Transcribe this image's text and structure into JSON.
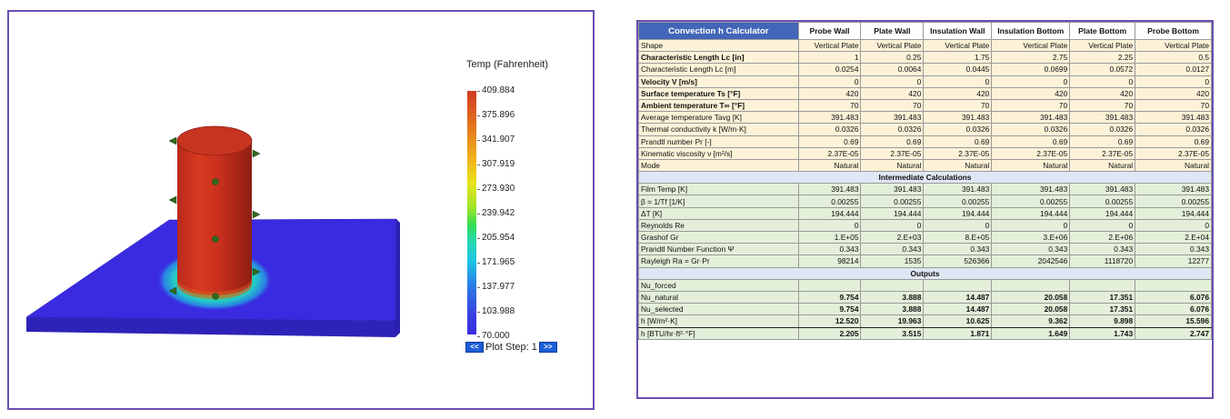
{
  "legend": {
    "title": "Temp (Fahrenheit)",
    "ticks": [
      "409.884",
      "375.896",
      "341.907",
      "307.919",
      "273.930",
      "239.942",
      "205.954",
      "171.965",
      "137.977",
      "103.988",
      "70.000"
    ],
    "plot_step_label": "Plot Step: 1",
    "prev_glyph": "<<",
    "next_glyph": ">>",
    "colors": {
      "hot": "#d23a21",
      "mid": "#35dd54",
      "cold": "#3b2ce0"
    }
  },
  "sheet": {
    "title": "Convection h Calculator",
    "columns": [
      "Probe Wall",
      "Plate Wall",
      "Insulation Wall",
      "Insulation Bottom",
      "Plate Bottom",
      "Probe Bottom"
    ],
    "rows": [
      {
        "kind": "input",
        "label": "Shape",
        "values": [
          "Vertical Plate",
          "Vertical Plate",
          "Vertical Plate",
          "Vertical Plate",
          "Vertical Plate",
          "Vertical Plate"
        ]
      },
      {
        "kind": "input",
        "bold": true,
        "label": "Characteristic Length Lc [in]",
        "values": [
          "1",
          "0.25",
          "1.75",
          "2.75",
          "2.25",
          "0.5"
        ]
      },
      {
        "kind": "input",
        "label": "Characteristic Length Lc [m]",
        "values": [
          "0.0254",
          "0.0064",
          "0.0445",
          "0.0699",
          "0.0572",
          "0.0127"
        ]
      },
      {
        "kind": "input",
        "bold": true,
        "label": "Velocity V [m/s]",
        "values": [
          "0",
          "0",
          "0",
          "0",
          "0",
          "0"
        ]
      },
      {
        "kind": "input",
        "bold": true,
        "label": "Surface temperature Ts [°F]",
        "values": [
          "420",
          "420",
          "420",
          "420",
          "420",
          "420"
        ]
      },
      {
        "kind": "input",
        "bold": true,
        "label": "Ambient temperature T∞ [°F]",
        "values": [
          "70",
          "70",
          "70",
          "70",
          "70",
          "70"
        ]
      },
      {
        "kind": "input",
        "label": "Average temperature Tavg [K]",
        "values": [
          "391.483",
          "391.483",
          "391.483",
          "391.483",
          "391.483",
          "391.483"
        ]
      },
      {
        "kind": "input",
        "label": "Thermal conductivity k [W/m·K]",
        "values": [
          "0.0326",
          "0.0326",
          "0.0326",
          "0.0326",
          "0.0326",
          "0.0326"
        ]
      },
      {
        "kind": "input",
        "label": "Prandtl number Pr [-]",
        "values": [
          "0.69",
          "0.69",
          "0.69",
          "0.69",
          "0.69",
          "0.69"
        ]
      },
      {
        "kind": "input",
        "label": "Kinematic viscosity ν [m²/s]",
        "values": [
          "2.37E-05",
          "2.37E-05",
          "2.37E-05",
          "2.37E-05",
          "2.37E-05",
          "2.37E-05"
        ]
      },
      {
        "kind": "input",
        "label": "Mode",
        "values": [
          "Natural",
          "Natural",
          "Natural",
          "Natural",
          "Natural",
          "Natural"
        ]
      },
      {
        "kind": "section",
        "label": "Intermediate Calculations"
      },
      {
        "kind": "calc",
        "label": "Film Temp [K]",
        "values": [
          "391.483",
          "391.483",
          "391.483",
          "391.483",
          "391.483",
          "391.483"
        ]
      },
      {
        "kind": "calc",
        "label": "β = 1/Tf [1/K]",
        "values": [
          "0.00255",
          "0.00255",
          "0.00255",
          "0.00255",
          "0.00255",
          "0.00255"
        ]
      },
      {
        "kind": "calc",
        "label": "ΔT [K]",
        "values": [
          "194.444",
          "194.444",
          "194.444",
          "194.444",
          "194.444",
          "194.444"
        ]
      },
      {
        "kind": "calc",
        "label": "Reynolds Re",
        "values": [
          "0",
          "0",
          "0",
          "0",
          "0",
          "0"
        ]
      },
      {
        "kind": "calc",
        "label": "Grashof Gr",
        "values": [
          "1.E+05",
          "2.E+03",
          "8.E+05",
          "3.E+06",
          "2.E+06",
          "2.E+04"
        ]
      },
      {
        "kind": "calc",
        "label": "Prandtl Number Function Ψ",
        "values": [
          "0.343",
          "0.343",
          "0.343",
          "0.343",
          "0.343",
          "0.343"
        ]
      },
      {
        "kind": "calc",
        "label": "Rayleigh Ra = Gr·Pr",
        "values": [
          "98214",
          "1535",
          "526366",
          "2042546",
          "1118720",
          "12277"
        ]
      },
      {
        "kind": "section",
        "label": "Outputs"
      },
      {
        "kind": "calc",
        "label": "Nu_forced",
        "values": [
          "",
          "",
          "",
          "",
          "",
          ""
        ]
      },
      {
        "kind": "calc",
        "out": true,
        "label": "Nu_natural",
        "values": [
          "9.754",
          "3.888",
          "14.487",
          "20.058",
          "17.351",
          "6.076"
        ]
      },
      {
        "kind": "calc",
        "out": true,
        "label": "Nu_selected",
        "values": [
          "9.754",
          "3.888",
          "14.487",
          "20.058",
          "17.351",
          "6.076"
        ]
      },
      {
        "kind": "calc",
        "out": true,
        "h": true,
        "label": "h [W/m²·K]",
        "values": [
          "12.520",
          "19.963",
          "10.625",
          "9.362",
          "9.898",
          "15.596"
        ]
      },
      {
        "kind": "calc",
        "out": true,
        "label": "h [BTU/hr·ft²·°F]",
        "values": [
          "2.205",
          "3.515",
          "1.871",
          "1.649",
          "1.743",
          "2.747"
        ]
      }
    ]
  }
}
